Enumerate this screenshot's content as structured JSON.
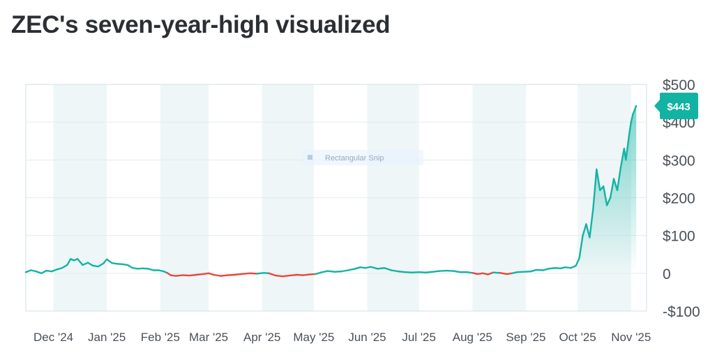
{
  "title": "ZEC's seven-year-high visualized",
  "overlay": {
    "label": "Rectangular Snip",
    "icon": "snip-icon"
  },
  "colors": {
    "up": "#13b3a3",
    "down": "#e8473b",
    "band": "#eef6f7",
    "grid": "#e3ebf0",
    "area_top": "#13b3a3",
    "tag_bg": "#13b3a3"
  },
  "chart_data": {
    "type": "line",
    "title": "ZEC's seven-year-high visualized",
    "xlabel": "",
    "ylabel": "",
    "ylim": [
      -100,
      500
    ],
    "y_ticks": [
      {
        "value": 500,
        "label": "$500"
      },
      {
        "value": 400,
        "label": "$400"
      },
      {
        "value": 300,
        "label": "$300"
      },
      {
        "value": 200,
        "label": "$200"
      },
      {
        "value": 100,
        "label": "$100"
      },
      {
        "value": 0,
        "label": "0"
      },
      {
        "value": -100,
        "label": "-$100"
      }
    ],
    "x_range": [
      "2024-11-15",
      "2025-11-10"
    ],
    "x_ticks": [
      {
        "date": "2024-12-01",
        "label": "Dec '24"
      },
      {
        "date": "2025-01-01",
        "label": "Jan '25"
      },
      {
        "date": "2025-02-01",
        "label": "Feb '25"
      },
      {
        "date": "2025-03-01",
        "label": "Mar '25"
      },
      {
        "date": "2025-04-01",
        "label": "Apr '25"
      },
      {
        "date": "2025-05-01",
        "label": "May '25"
      },
      {
        "date": "2025-06-01",
        "label": "Jun '25"
      },
      {
        "date": "2025-07-01",
        "label": "Jul '25"
      },
      {
        "date": "2025-08-01",
        "label": "Aug '25"
      },
      {
        "date": "2025-09-01",
        "label": "Sep '25"
      },
      {
        "date": "2025-10-01",
        "label": "Oct '25"
      },
      {
        "date": "2025-11-01",
        "label": "Nov '25"
      }
    ],
    "last_value_label": "$443",
    "grid": true,
    "shaded_bands": "alternating months",
    "series": [
      {
        "points": [
          [
            "2024-11-15",
            3
          ],
          [
            "2024-11-18",
            8
          ],
          [
            "2024-11-21",
            5
          ],
          [
            "2024-11-24",
            0
          ],
          [
            "2024-11-27",
            7
          ],
          [
            "2024-11-30",
            5
          ],
          [
            "2024-12-03",
            10
          ],
          [
            "2024-12-06",
            14
          ],
          [
            "2024-12-09",
            22
          ],
          [
            "2024-12-11",
            38
          ],
          [
            "2024-12-13",
            34
          ],
          [
            "2024-12-15",
            38
          ],
          [
            "2024-12-18",
            22
          ],
          [
            "2024-12-21",
            28
          ],
          [
            "2024-12-24",
            20
          ],
          [
            "2024-12-27",
            18
          ],
          [
            "2024-12-30",
            26
          ],
          [
            "2025-01-01",
            37
          ],
          [
            "2025-01-04",
            27
          ],
          [
            "2025-01-07",
            25
          ],
          [
            "2025-01-10",
            24
          ],
          [
            "2025-01-13",
            22
          ],
          [
            "2025-01-16",
            14
          ],
          [
            "2025-01-19",
            12
          ],
          [
            "2025-01-22",
            13
          ],
          [
            "2025-01-25",
            12
          ],
          [
            "2025-01-28",
            8
          ],
          [
            "2025-01-31",
            8
          ],
          [
            "2025-02-03",
            5
          ],
          [
            "2025-02-05",
            1
          ],
          [
            "2025-02-07",
            -5
          ],
          [
            "2025-02-10",
            -7
          ],
          [
            "2025-02-14",
            -5
          ],
          [
            "2025-02-18",
            -6
          ],
          [
            "2025-02-22",
            -4
          ],
          [
            "2025-02-26",
            -2
          ],
          [
            "2025-03-01",
            0
          ],
          [
            "2025-03-04",
            -4
          ],
          [
            "2025-03-08",
            -7
          ],
          [
            "2025-03-12",
            -5
          ],
          [
            "2025-03-16",
            -4
          ],
          [
            "2025-03-20",
            -2
          ],
          [
            "2025-03-25",
            0
          ],
          [
            "2025-03-29",
            -1
          ],
          [
            "2025-04-02",
            1
          ],
          [
            "2025-04-05",
            0
          ],
          [
            "2025-04-09",
            -6
          ],
          [
            "2025-04-13",
            -8
          ],
          [
            "2025-04-17",
            -6
          ],
          [
            "2025-04-21",
            -4
          ],
          [
            "2025-04-25",
            -5
          ],
          [
            "2025-04-29",
            -3
          ],
          [
            "2025-05-02",
            -2
          ],
          [
            "2025-05-05",
            2
          ],
          [
            "2025-05-09",
            6
          ],
          [
            "2025-05-13",
            4
          ],
          [
            "2025-05-17",
            5
          ],
          [
            "2025-05-21",
            8
          ],
          [
            "2025-05-25",
            12
          ],
          [
            "2025-05-28",
            16
          ],
          [
            "2025-05-31",
            14
          ],
          [
            "2025-06-03",
            17
          ],
          [
            "2025-06-07",
            12
          ],
          [
            "2025-06-11",
            14
          ],
          [
            "2025-06-15",
            8
          ],
          [
            "2025-06-19",
            5
          ],
          [
            "2025-06-23",
            3
          ],
          [
            "2025-06-27",
            2
          ],
          [
            "2025-07-01",
            3
          ],
          [
            "2025-07-05",
            2
          ],
          [
            "2025-07-09",
            4
          ],
          [
            "2025-07-13",
            6
          ],
          [
            "2025-07-17",
            7
          ],
          [
            "2025-07-21",
            6
          ],
          [
            "2025-07-25",
            3
          ],
          [
            "2025-07-29",
            3
          ],
          [
            "2025-08-01",
            1
          ],
          [
            "2025-08-04",
            -2
          ],
          [
            "2025-08-07",
            0
          ],
          [
            "2025-08-10",
            -3
          ],
          [
            "2025-08-13",
            2
          ],
          [
            "2025-08-17",
            1
          ],
          [
            "2025-08-21",
            -2
          ],
          [
            "2025-08-24",
            0
          ],
          [
            "2025-08-27",
            3
          ],
          [
            "2025-08-31",
            4
          ],
          [
            "2025-09-04",
            5
          ],
          [
            "2025-09-07",
            9
          ],
          [
            "2025-09-11",
            8
          ],
          [
            "2025-09-14",
            12
          ],
          [
            "2025-09-18",
            14
          ],
          [
            "2025-09-21",
            13
          ],
          [
            "2025-09-24",
            16
          ],
          [
            "2025-09-27",
            14
          ],
          [
            "2025-09-30",
            20
          ],
          [
            "2025-10-02",
            40
          ],
          [
            "2025-10-04",
            100
          ],
          [
            "2025-10-06",
            130
          ],
          [
            "2025-10-08",
            95
          ],
          [
            "2025-10-10",
            170
          ],
          [
            "2025-10-12",
            275
          ],
          [
            "2025-10-14",
            220
          ],
          [
            "2025-10-16",
            230
          ],
          [
            "2025-10-18",
            180
          ],
          [
            "2025-10-20",
            200
          ],
          [
            "2025-10-22",
            250
          ],
          [
            "2025-10-24",
            220
          ],
          [
            "2025-10-26",
            280
          ],
          [
            "2025-10-28",
            330
          ],
          [
            "2025-10-29",
            300
          ],
          [
            "2025-10-31",
            370
          ],
          [
            "2025-11-01",
            400
          ],
          [
            "2025-11-02",
            420
          ],
          [
            "2025-11-04",
            443
          ]
        ]
      }
    ]
  }
}
